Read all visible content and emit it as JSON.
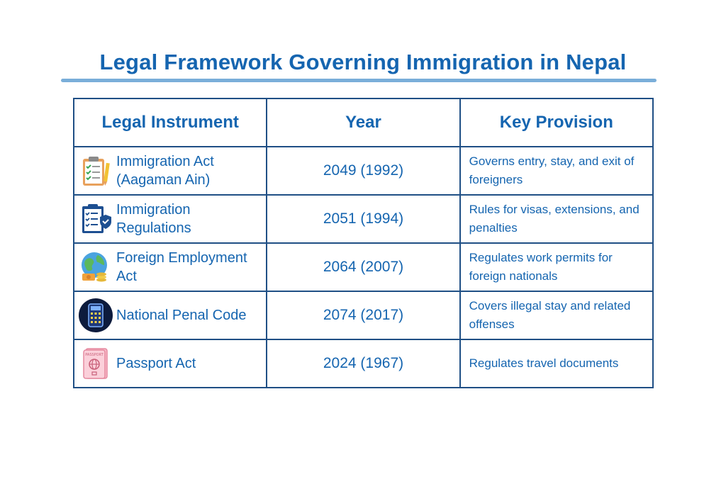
{
  "title": "Legal Framework Governing Immigration in Nepal",
  "table": {
    "headers": [
      "Legal Instrument",
      "Year",
      "Key Provision"
    ],
    "rows": [
      {
        "instrument": "Immigration Act (Aagaman Ain)",
        "year": "2049 (1992)",
        "provision": "Governs entry, stay, and exit of foreigners",
        "icon": "clipboard-checklist-icon"
      },
      {
        "instrument": "Immigration Regulations",
        "year": "2051 (1994)",
        "provision": "Rules for visas, extensions, and penalties",
        "icon": "shield-document-icon"
      },
      {
        "instrument": "Foreign Employment Act",
        "year": "2064 (2007)",
        "provision": "Regulates work permits for foreign nationals",
        "icon": "globe-money-icon"
      },
      {
        "instrument": "National Penal Code",
        "year": "2074 (2017)",
        "provision": "Covers illegal stay and related offenses",
        "icon": "calculator-icon"
      },
      {
        "instrument": "Passport Act",
        "year": "2024 (1967)",
        "provision": "Regulates travel documents",
        "icon": "passport-icon"
      }
    ]
  },
  "passport_icon_text": "PASSPORT",
  "colors": {
    "text": "#1565b0",
    "border": "#1f4f85",
    "underline": "#7aaed9"
  }
}
